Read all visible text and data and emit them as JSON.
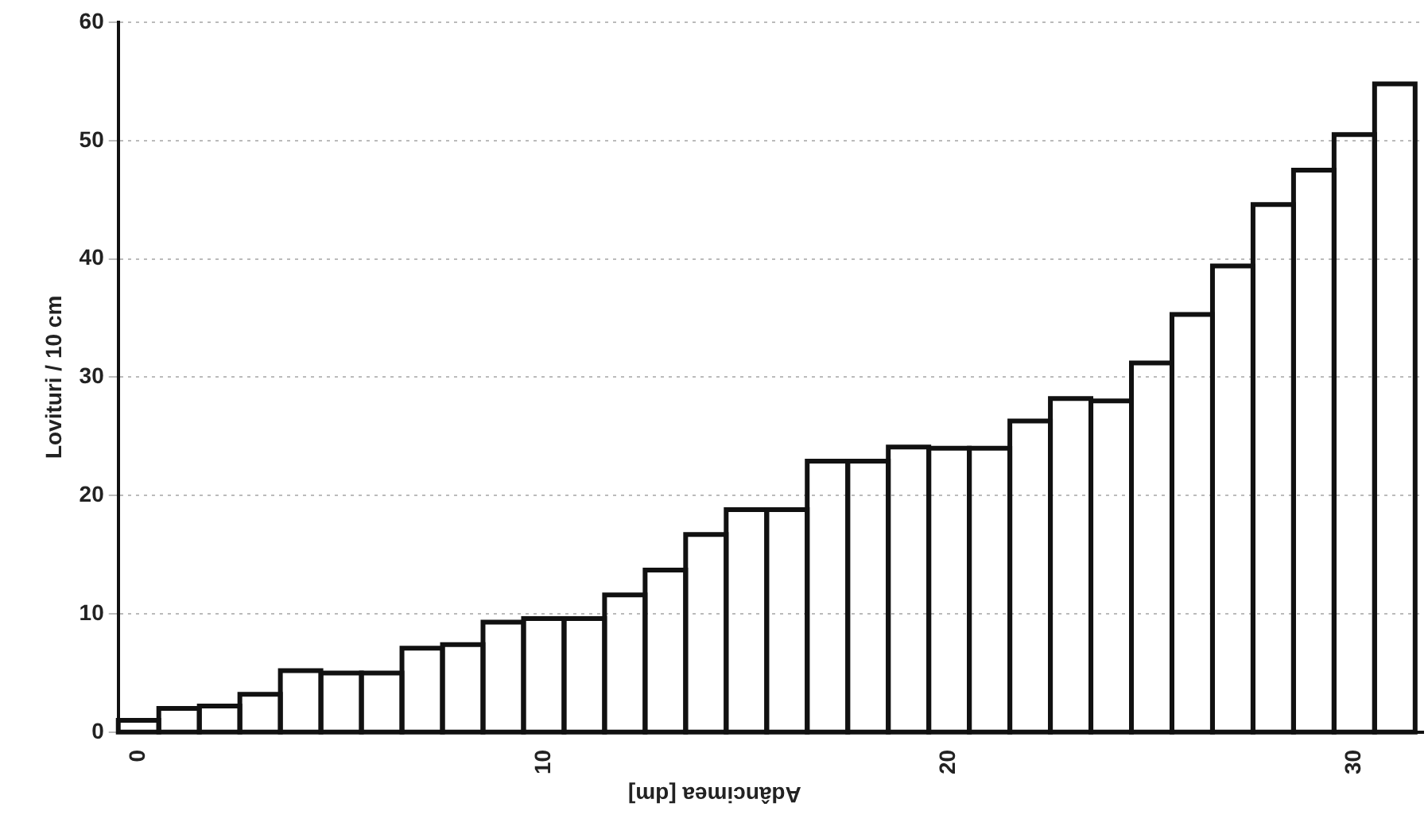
{
  "chart_data": {
    "type": "histogram",
    "xlabel": "Adâncimea [dm]",
    "ylabel": "Lovituri / 10 cm",
    "bins": [
      -0.5,
      0.5,
      1.5,
      2.5,
      3.5,
      4.5,
      5.5,
      6.5,
      7.5,
      8.5,
      9.5,
      10.5,
      11.5,
      12.5,
      13.5,
      14.5,
      15.5,
      16.5,
      17.5,
      18.5,
      19.5,
      20.5,
      21.5,
      22.5,
      23.5,
      24.5,
      25.5,
      26.5,
      27.5,
      28.5,
      29.5,
      30.5,
      31.5
    ],
    "values": [
      1,
      2,
      2.2,
      3.2,
      5.2,
      5,
      5,
      7.1,
      7.4,
      9.3,
      9.6,
      9.6,
      11.6,
      13.7,
      16.7,
      18.8,
      18.8,
      22.9,
      22.9,
      24.1,
      24,
      24,
      26.3,
      28.2,
      28,
      31.2,
      35.3,
      39.4,
      44.6,
      47.5,
      50.5,
      54.8
    ],
    "color": "#111111",
    "xlim": [
      -0.5,
      31.7
    ],
    "xticks": [
      0,
      10,
      20,
      30
    ],
    "ylim": [
      0,
      60
    ],
    "yticks": [
      0,
      10,
      20,
      30,
      40,
      50,
      60
    ],
    "grid": "y",
    "legend": false
  }
}
